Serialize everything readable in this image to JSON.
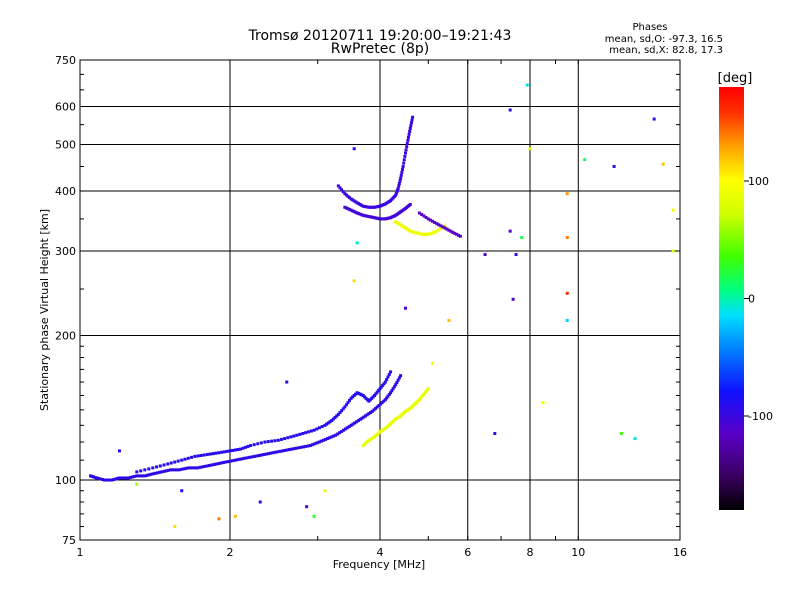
{
  "chart_data": {
    "type": "scatter",
    "title": "Tromsø 20120711 19:20:00–19:21:43",
    "subtitle": "RwPretec (8p)",
    "xlabel": "Frequency [MHz]",
    "ylabel": "Stationary phase Virtual Height [km]",
    "x_scale": "log",
    "y_scale": "log",
    "xlim": [
      1,
      16
    ],
    "ylim": [
      75,
      750
    ],
    "x_ticks": [
      1,
      2,
      4,
      6,
      8,
      10,
      16
    ],
    "y_ticks": [
      75,
      100,
      200,
      300,
      400,
      500,
      600,
      750
    ],
    "x_tick_labels": [
      "1",
      "2",
      "4",
      "6",
      "8",
      "10",
      "16"
    ],
    "y_tick_labels": [
      "75",
      "100",
      "200",
      "300",
      "400",
      "500",
      "600",
      "750"
    ],
    "grid": true,
    "info": {
      "heading": "Phases",
      "line1": "mean, sd,O: -97.3, 16.5",
      "line2": "mean, sd,X:  82.8, 17.3"
    },
    "colorbar": {
      "label": "[deg]",
      "range": [
        -180,
        180
      ],
      "ticks": [
        -100,
        0,
        100
      ],
      "tick_labels": [
        "-100",
        "0",
        "100"
      ]
    },
    "series": [
      {
        "trace": "E-F1 lower O-mode trace (blue)",
        "x": [
          1.05,
          1.08,
          1.12,
          1.16,
          1.2,
          1.25,
          1.3,
          1.35,
          1.4,
          1.46,
          1.52,
          1.58,
          1.65,
          1.72,
          1.8,
          1.88,
          1.96,
          2.05,
          2.14,
          2.24,
          2.34,
          2.44,
          2.55,
          2.66,
          2.78,
          2.9,
          3.02,
          3.14,
          3.26,
          3.38,
          3.5,
          3.62,
          3.74,
          3.86,
          3.98,
          4.1,
          4.2,
          4.3,
          4.4
        ],
        "y": [
          102,
          101,
          100,
          100,
          101,
          101,
          102,
          102,
          103,
          104,
          105,
          105,
          106,
          106,
          107,
          108,
          109,
          110,
          111,
          112,
          113,
          114,
          115,
          116,
          117,
          118,
          120,
          122,
          124,
          127,
          130,
          133,
          136,
          139,
          143,
          147,
          152,
          158,
          165
        ],
        "phase_deg": -95
      },
      {
        "trace": "E-F1 upper O-mode trace (blue)",
        "x": [
          1.3,
          1.4,
          1.5,
          1.6,
          1.7,
          1.8,
          1.9,
          2.0,
          2.1,
          2.2,
          2.35,
          2.5,
          2.65,
          2.8,
          2.95,
          3.1,
          3.2,
          3.3,
          3.4,
          3.5,
          3.6,
          3.7,
          3.8,
          3.9,
          4.0,
          4.1,
          4.2
        ],
        "y": [
          104,
          106,
          108,
          110,
          112,
          113,
          114,
          115,
          116,
          118,
          120,
          121,
          123,
          125,
          127,
          130,
          133,
          137,
          142,
          148,
          152,
          150,
          146,
          150,
          155,
          160,
          168
        ],
        "phase_deg": -90
      },
      {
        "trace": "E-F1 X-mode trace (yellow)",
        "x": [
          3.7,
          3.8,
          3.9,
          4.0,
          4.1,
          4.2,
          4.3,
          4.4,
          4.5,
          4.6,
          4.7,
          4.8,
          4.9,
          5.0
        ],
        "y": [
          118,
          121,
          123,
          126,
          128,
          131,
          134,
          136,
          139,
          141,
          144,
          147,
          151,
          155
        ],
        "phase_deg": 85
      },
      {
        "trace": "F2 O-mode trace (blue)",
        "x": [
          3.3,
          3.4,
          3.5,
          3.6,
          3.7,
          3.8,
          3.9,
          4.0,
          4.1,
          4.2,
          4.3,
          4.35,
          4.4,
          4.45,
          4.5,
          4.55,
          4.6,
          4.65
        ],
        "y": [
          410,
          395,
          385,
          378,
          372,
          370,
          370,
          372,
          376,
          382,
          392,
          405,
          425,
          450,
          480,
          510,
          540,
          570
        ],
        "phase_deg": -100
      },
      {
        "trace": "F2 lower branch (blue)",
        "x": [
          3.4,
          3.5,
          3.6,
          3.7,
          3.8,
          3.9,
          4.0,
          4.1,
          4.2,
          4.3,
          4.4,
          4.5,
          4.6
        ],
        "y": [
          370,
          365,
          360,
          356,
          354,
          352,
          350,
          350,
          352,
          356,
          362,
          368,
          375
        ],
        "phase_deg": -105
      },
      {
        "trace": "F2 X-mode trace (yellow)",
        "x": [
          4.3,
          4.4,
          4.5,
          4.6,
          4.7,
          4.8,
          4.9,
          5.0,
          5.1,
          5.2,
          5.4
        ],
        "y": [
          345,
          340,
          335,
          330,
          328,
          326,
          325,
          325,
          327,
          330,
          338
        ],
        "phase_deg": 90
      },
      {
        "trace": "F2 X-mode tail (purple)",
        "x": [
          4.8,
          5.0,
          5.2,
          5.4,
          5.6,
          5.8
        ],
        "y": [
          360,
          350,
          342,
          335,
          328,
          322
        ],
        "phase_deg": -115
      }
    ],
    "scattered_points": [
      {
        "x": 1.2,
        "y": 115,
        "phase_deg": -90
      },
      {
        "x": 1.3,
        "y": 98,
        "phase_deg": 60
      },
      {
        "x": 1.55,
        "y": 80,
        "phase_deg": 110
      },
      {
        "x": 1.6,
        "y": 95,
        "phase_deg": -85
      },
      {
        "x": 1.9,
        "y": 83,
        "phase_deg": 140
      },
      {
        "x": 2.05,
        "y": 84,
        "phase_deg": 120
      },
      {
        "x": 2.3,
        "y": 90,
        "phase_deg": -100
      },
      {
        "x": 2.6,
        "y": 160,
        "phase_deg": -95
      },
      {
        "x": 2.85,
        "y": 88,
        "phase_deg": -110
      },
      {
        "x": 2.95,
        "y": 84,
        "phase_deg": 30
      },
      {
        "x": 3.1,
        "y": 95,
        "phase_deg": 90
      },
      {
        "x": 3.55,
        "y": 260,
        "phase_deg": 110
      },
      {
        "x": 3.6,
        "y": 312,
        "phase_deg": -5
      },
      {
        "x": 3.55,
        "y": 490,
        "phase_deg": -90
      },
      {
        "x": 4.5,
        "y": 228,
        "phase_deg": -105
      },
      {
        "x": 5.1,
        "y": 175,
        "phase_deg": 95
      },
      {
        "x": 5.5,
        "y": 215,
        "phase_deg": 120
      },
      {
        "x": 6.5,
        "y": 295,
        "phase_deg": -110
      },
      {
        "x": 6.8,
        "y": 125,
        "phase_deg": -100
      },
      {
        "x": 7.3,
        "y": 590,
        "phase_deg": -100
      },
      {
        "x": 7.3,
        "y": 330,
        "phase_deg": -110
      },
      {
        "x": 7.4,
        "y": 238,
        "phase_deg": -105
      },
      {
        "x": 7.5,
        "y": 295,
        "phase_deg": -95
      },
      {
        "x": 7.7,
        "y": 320,
        "phase_deg": 20
      },
      {
        "x": 7.9,
        "y": 665,
        "phase_deg": -10
      },
      {
        "x": 8.0,
        "y": 490,
        "phase_deg": 80
      },
      {
        "x": 8.5,
        "y": 145,
        "phase_deg": 95
      },
      {
        "x": 9.5,
        "y": 395,
        "phase_deg": 130
      },
      {
        "x": 9.5,
        "y": 245,
        "phase_deg": 165
      },
      {
        "x": 9.5,
        "y": 320,
        "phase_deg": 140
      },
      {
        "x": 9.5,
        "y": 215,
        "phase_deg": -20
      },
      {
        "x": 10.3,
        "y": 465,
        "phase_deg": 15
      },
      {
        "x": 11.8,
        "y": 450,
        "phase_deg": -100
      },
      {
        "x": 12.2,
        "y": 125,
        "phase_deg": 40
      },
      {
        "x": 13.0,
        "y": 122,
        "phase_deg": -10
      },
      {
        "x": 14.2,
        "y": 565,
        "phase_deg": -100
      },
      {
        "x": 14.8,
        "y": 455,
        "phase_deg": 120
      },
      {
        "x": 15.5,
        "y": 365,
        "phase_deg": 90
      },
      {
        "x": 15.5,
        "y": 300,
        "phase_deg": 80
      }
    ]
  }
}
